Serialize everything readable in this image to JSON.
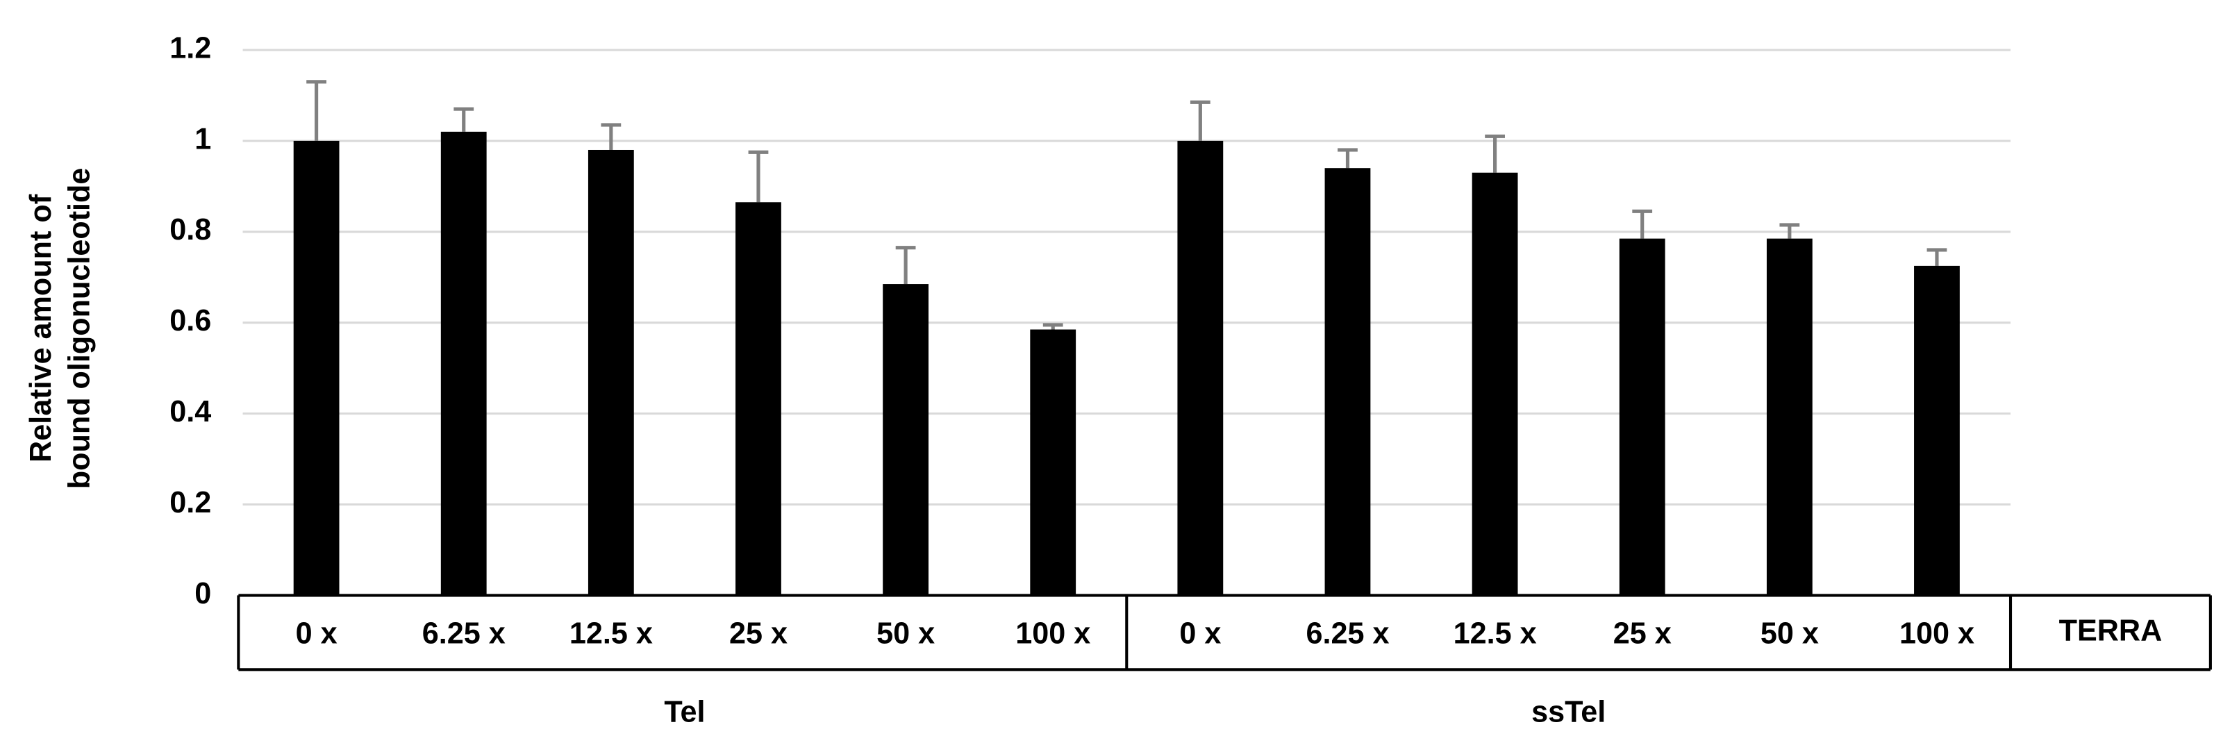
{
  "chart_data": {
    "type": "bar",
    "y_label": [
      "Relative amount of",
      "bound oligonucleotide"
    ],
    "categories": [
      "0 x",
      "6.25 x",
      "12.5 x",
      "25 x",
      "50 x",
      "100 x",
      "0 x",
      "6.25 x",
      "12.5 x",
      "25 x",
      "50 x",
      "100 x"
    ],
    "groups": [
      "Tel",
      "ssTel"
    ],
    "control_label": "TERRA",
    "values": [
      1.0,
      1.02,
      0.98,
      0.865,
      0.685,
      0.585,
      1.0,
      0.94,
      0.93,
      0.785,
      0.785,
      0.725
    ],
    "errors": [
      0.13,
      0.05,
      0.055,
      0.11,
      0.08,
      0.01,
      0.085,
      0.04,
      0.08,
      0.06,
      0.03,
      0.035
    ],
    "color": "#000000",
    "error_color": "#808080",
    "ylim": [
      0,
      1.2
    ],
    "yticks": [
      0,
      0.2,
      0.4,
      0.6,
      0.8,
      1,
      1.2
    ],
    "grid": true
  }
}
